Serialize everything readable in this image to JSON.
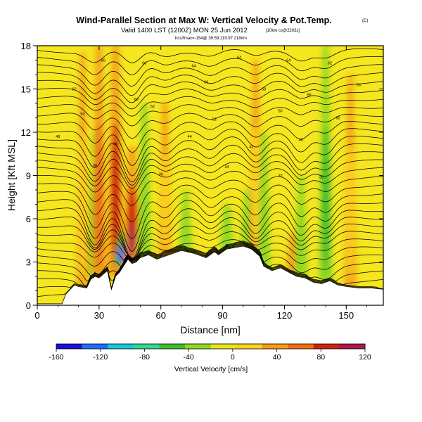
{
  "header": {
    "title": "Wind-Parallel Section at Max W: Vertical Velocity & Pot.Temp.",
    "copyright": "(C)",
    "subtitle_main": "Valid 1400 LST (1200Z) MON 25 Jun 2012",
    "subtitle_tag": "[10km cs@2203z]",
    "source_line": "hcs/fmax=-154@ 39.59,119.97 218#m"
  },
  "colorbar": {
    "label": "Vertical Velocity [cm/s]",
    "ticks": [
      "-160",
      "-120",
      "-80",
      "-40",
      "0",
      "40",
      "80",
      "120"
    ],
    "colors": [
      "#1b0fd8",
      "#1b6ff8",
      "#14c8d8",
      "#30d890",
      "#3cbd2c",
      "#8fd820",
      "#e6e61a",
      "#ffd21e",
      "#f59b14",
      "#f06e12",
      "#d2200e",
      "#a81c48"
    ]
  },
  "chart_data": {
    "type": "heatmap",
    "title": "Wind-Parallel Section at Max W: Vertical Velocity & Pot.Temp.",
    "xlabel": "Distance [nm]",
    "ylabel": "Height [Kft MSL]",
    "x_ticks": [
      "0",
      "30",
      "60",
      "90",
      "120",
      "150"
    ],
    "y_ticks": [
      "0",
      "3",
      "6",
      "9",
      "12",
      "15",
      "18"
    ],
    "xlim": [
      0,
      168
    ],
    "ylim": [
      0,
      18
    ],
    "variable": "Vertical Velocity [cm/s]",
    "color_range": [
      -160,
      120
    ],
    "min_w": -154,
    "contour_variable": "potential temperature",
    "contour_values": [
      32,
      34,
      36,
      38,
      40,
      42,
      44,
      46,
      48,
      50,
      52,
      54,
      56,
      58,
      60,
      62,
      64,
      66,
      68
    ],
    "contour_labels": [
      "66",
      "66",
      "64",
      "64",
      "64",
      "62",
      "62",
      "60",
      "60",
      "58",
      "56",
      "56",
      "54",
      "52",
      "52",
      "50",
      "50",
      "48",
      "46",
      "44",
      "42",
      "40",
      "38",
      "36",
      "34",
      "32",
      "30"
    ],
    "features": [
      {
        "x": 22,
        "ytop": 17.5,
        "w": 20,
        "kind": "updraft"
      },
      {
        "x": 28,
        "ytop": 12,
        "w": -60,
        "kind": "downdraft"
      },
      {
        "x": 30,
        "ytop": 18,
        "w": 70,
        "kind": "updraft"
      },
      {
        "x": 38,
        "ytop": 18,
        "w": 90,
        "kind": "updraft"
      },
      {
        "x": 42,
        "ytop": 5,
        "w": -154,
        "kind": "downdraft"
      },
      {
        "x": 46,
        "ytop": 11,
        "w": 110,
        "kind": "updraft"
      },
      {
        "x": 52,
        "ytop": 14,
        "w": -50,
        "kind": "downdraft"
      },
      {
        "x": 62,
        "ytop": 14,
        "w": 30,
        "kind": "updraft"
      },
      {
        "x": 72,
        "ytop": 8,
        "w": -40,
        "kind": "downdraft"
      },
      {
        "x": 92,
        "ytop": 7,
        "w": -50,
        "kind": "downdraft"
      },
      {
        "x": 102,
        "ytop": 8,
        "w": -50,
        "kind": "downdraft"
      },
      {
        "x": 106,
        "ytop": 17,
        "w": 30,
        "kind": "updraft"
      },
      {
        "x": 110,
        "ytop": 12,
        "w": -40,
        "kind": "downdraft"
      },
      {
        "x": 124,
        "ytop": 5,
        "w": 40,
        "kind": "updraft"
      },
      {
        "x": 128,
        "ytop": 9,
        "w": -50,
        "kind": "downdraft"
      },
      {
        "x": 140,
        "ytop": 18,
        "w": -55,
        "kind": "downdraft"
      },
      {
        "x": 152,
        "ytop": 16,
        "w": 20,
        "kind": "updraft"
      }
    ],
    "terrain_height_kft": [
      [
        0,
        0.1
      ],
      [
        12,
        0.1
      ],
      [
        14,
        0.8
      ],
      [
        18,
        1.4
      ],
      [
        20,
        1.3
      ],
      [
        24,
        1.2
      ],
      [
        26,
        1.8
      ],
      [
        28,
        2.0
      ],
      [
        30,
        1.9
      ],
      [
        34,
        2.4
      ],
      [
        36,
        1.1
      ],
      [
        38,
        2.0
      ],
      [
        40,
        2.3
      ],
      [
        44,
        3.2
      ],
      [
        46,
        2.9
      ],
      [
        48,
        3.0
      ],
      [
        50,
        3.3
      ],
      [
        54,
        3.5
      ],
      [
        58,
        3.2
      ],
      [
        64,
        3.5
      ],
      [
        70,
        3.8
      ],
      [
        76,
        3.6
      ],
      [
        82,
        3.3
      ],
      [
        86,
        3.7
      ],
      [
        88,
        3.5
      ],
      [
        92,
        3.9
      ],
      [
        96,
        4.0
      ],
      [
        100,
        4.1
      ],
      [
        104,
        3.9
      ],
      [
        108,
        3.4
      ],
      [
        110,
        2.7
      ],
      [
        114,
        2.4
      ],
      [
        118,
        2.6
      ],
      [
        122,
        2.3
      ],
      [
        126,
        2.0
      ],
      [
        130,
        1.9
      ],
      [
        134,
        1.6
      ],
      [
        138,
        1.5
      ],
      [
        142,
        1.7
      ],
      [
        146,
        1.4
      ],
      [
        150,
        1.3
      ],
      [
        156,
        1.2
      ],
      [
        162,
        1.2
      ],
      [
        168,
        1.1
      ]
    ],
    "grid": false
  }
}
